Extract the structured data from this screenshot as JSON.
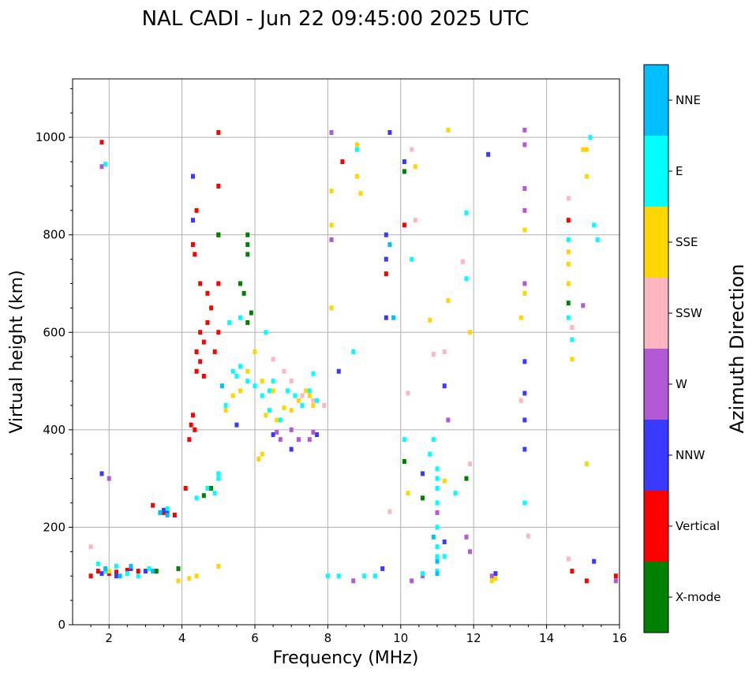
{
  "chart_data": {
    "type": "scatter",
    "title": "NAL CADI - Jun 22 09:45:00 2025 UTC",
    "xlabel": "Frequency (MHz)",
    "ylabel": "Virtual height (km)",
    "xlim": [
      1,
      16
    ],
    "ylim": [
      0,
      1120
    ],
    "xticks": [
      2,
      4,
      6,
      8,
      10,
      12,
      14,
      16
    ],
    "yticks": [
      0,
      200,
      400,
      600,
      800,
      1000
    ],
    "grid": true,
    "colorbar": {
      "label": "Azimuth Direction",
      "categories": [
        {
          "name": "X-mode",
          "color": "#008000"
        },
        {
          "name": "Vertical",
          "color": "#ff0000"
        },
        {
          "name": "NNW",
          "color": "#3a3aff"
        },
        {
          "name": "W",
          "color": "#b25ad6"
        },
        {
          "name": "SSW",
          "color": "#ffb6c1"
        },
        {
          "name": "SSE",
          "color": "#ffd700"
        },
        {
          "name": "E",
          "color": "#00ffff"
        },
        {
          "name": "NNE",
          "color": "#00bfff"
        }
      ]
    },
    "series": [
      {
        "name": "Vertical",
        "x": [
          1.5,
          1.7,
          2.0,
          2.2,
          2.5,
          2.8,
          3.0,
          3.2,
          3.5,
          3.8,
          4.1,
          4.2,
          4.25,
          4.3,
          4.35,
          4.4,
          4.4,
          4.5,
          4.5,
          4.6,
          4.6,
          4.7,
          4.8,
          4.9,
          5.0,
          5.0,
          5.0,
          5.0,
          1.8,
          4.3,
          4.35,
          4.4,
          4.5,
          4.7,
          5.0,
          8.4,
          9.6,
          10.1,
          14.6,
          14.7,
          15.1,
          15.9
        ],
        "y": [
          100,
          110,
          105,
          108,
          112,
          110,
          110,
          245,
          230,
          225,
          280,
          380,
          410,
          430,
          400,
          520,
          560,
          540,
          600,
          510,
          580,
          620,
          650,
          560,
          600,
          700,
          800,
          1010,
          990,
          780,
          760,
          850,
          700,
          680,
          900,
          950,
          720,
          820,
          830,
          110,
          90,
          100
        ]
      },
      {
        "name": "NNW",
        "x": [
          1.8,
          2.2,
          2.6,
          3.0,
          3.5,
          3.6,
          4.3,
          4.3,
          5.5,
          6.5,
          7.0,
          7.7,
          8.3,
          9.5,
          9.6,
          9.6,
          9.6,
          9.7,
          10.1,
          10.6,
          11.2,
          11.2,
          12.4,
          12.6,
          13.4,
          13.4,
          13.4,
          13.4,
          15.3,
          1.8
        ],
        "y": [
          105,
          100,
          115,
          110,
          235,
          230,
          920,
          830,
          410,
          390,
          360,
          390,
          520,
          115,
          630,
          750,
          800,
          1010,
          950,
          310,
          490,
          170,
          965,
          105,
          360,
          420,
          475,
          540,
          130,
          310
        ]
      },
      {
        "name": "W",
        "x": [
          6.6,
          6.7,
          7.0,
          7.2,
          7.5,
          7.6,
          8.1,
          8.1,
          8.7,
          10.3,
          10.6,
          11.0,
          11.3,
          11.8,
          11.9,
          12.5,
          13.4,
          13.4,
          13.4,
          13.4,
          13.4,
          15.0,
          15.9,
          2.0,
          1.8
        ],
        "y": [
          395,
          380,
          400,
          380,
          380,
          395,
          1010,
          790,
          90,
          90,
          100,
          230,
          420,
          180,
          150,
          100,
          1015,
          985,
          895,
          850,
          700,
          655,
          90,
          300,
          940
        ]
      },
      {
        "name": "SSW",
        "x": [
          6.5,
          6.8,
          7.0,
          7.3,
          7.6,
          7.9,
          10.2,
          10.4,
          10.9,
          11.2,
          11.7,
          11.9,
          13.3,
          13.5,
          14.6,
          14.6,
          14.7,
          1.5,
          9.7,
          10.3
        ],
        "y": [
          545,
          520,
          500,
          470,
          460,
          450,
          475,
          830,
          555,
          560,
          745,
          330,
          460,
          182,
          875,
          135,
          610,
          160,
          232,
          975
        ]
      },
      {
        "name": "SSE",
        "x": [
          4.2,
          4.4,
          5.0,
          5.2,
          5.4,
          5.6,
          5.8,
          6.0,
          6.2,
          6.3,
          6.5,
          6.6,
          6.8,
          7.0,
          7.2,
          7.4,
          7.5,
          7.6,
          6.1,
          6.2,
          8.1,
          8.1,
          8.1,
          8.8,
          8.8,
          8.9,
          10.2,
          10.4,
          10.8,
          11.2,
          11.3,
          11.3,
          11.9,
          12.5,
          12.6,
          13.3,
          13.4,
          13.4,
          14.6,
          14.6,
          14.6,
          14.7,
          15.0,
          15.1,
          15.1,
          15.1,
          3.9,
          2.0
        ],
        "y": [
          95,
          100,
          120,
          440,
          470,
          480,
          520,
          560,
          500,
          430,
          480,
          420,
          445,
          440,
          460,
          480,
          470,
          450,
          340,
          350,
          890,
          820,
          650,
          985,
          920,
          885,
          270,
          940,
          625,
          295,
          665,
          1015,
          600,
          90,
          95,
          630,
          810,
          680,
          700,
          765,
          740,
          545,
          975,
          975,
          920,
          330,
          90,
          110
        ]
      },
      {
        "name": "E",
        "x": [
          1.7,
          1.9,
          2.2,
          2.5,
          2.8,
          3.1,
          3.4,
          3.6,
          3.9,
          4.4,
          4.7,
          5.0,
          5.2,
          5.4,
          5.5,
          5.6,
          5.8,
          6.0,
          6.2,
          6.4,
          6.5,
          6.7,
          6.9,
          7.1,
          7.3,
          7.5,
          7.7,
          8.0,
          8.3,
          8.7,
          8.8,
          9.0,
          9.3,
          10.1,
          10.3,
          10.6,
          10.8,
          10.9,
          11.0,
          11.0,
          11.0,
          11.0,
          11.0,
          11.0,
          11.0,
          11.0,
          11.2,
          11.5,
          11.8,
          11.8,
          13.4,
          14.6,
          14.6,
          14.7,
          15.2,
          15.3,
          15.4,
          1.9,
          4.9,
          5.0,
          5.3,
          5.6,
          6.3,
          6.4,
          7.6
        ],
        "y": [
          125,
          110,
          120,
          105,
          100,
          115,
          230,
          238,
          115,
          260,
          280,
          310,
          450,
          520,
          510,
          530,
          500,
          490,
          470,
          480,
          500,
          420,
          480,
          470,
          450,
          480,
          460,
          100,
          100,
          560,
          975,
          100,
          100,
          380,
          750,
          105,
          350,
          380,
          110,
          140,
          160,
          200,
          250,
          280,
          300,
          320,
          140,
          270,
          710,
          845,
          250,
          790,
          630,
          585,
          1000,
          820,
          790,
          945,
          270,
          300,
          620,
          630,
          600,
          440,
          515
        ]
      },
      {
        "name": "NNE",
        "x": [
          1.9,
          2.3,
          2.6,
          3.2,
          3.4,
          3.6,
          5.1,
          9.7,
          9.8,
          10.9,
          11.0,
          11.0
        ],
        "y": [
          115,
          100,
          120,
          110,
          230,
          225,
          490,
          780,
          630,
          180,
          130,
          105
        ]
      },
      {
        "name": "X-mode",
        "x": [
          3.3,
          3.9,
          4.6,
          4.8,
          5.0,
          5.6,
          5.7,
          5.8,
          5.8,
          5.8,
          5.8,
          5.9,
          10.1,
          10.1,
          10.6,
          11.8,
          14.6
        ],
        "y": [
          110,
          115,
          265,
          280,
          800,
          700,
          680,
          620,
          780,
          760,
          800,
          640,
          335,
          930,
          260,
          300,
          660
        ]
      }
    ]
  }
}
